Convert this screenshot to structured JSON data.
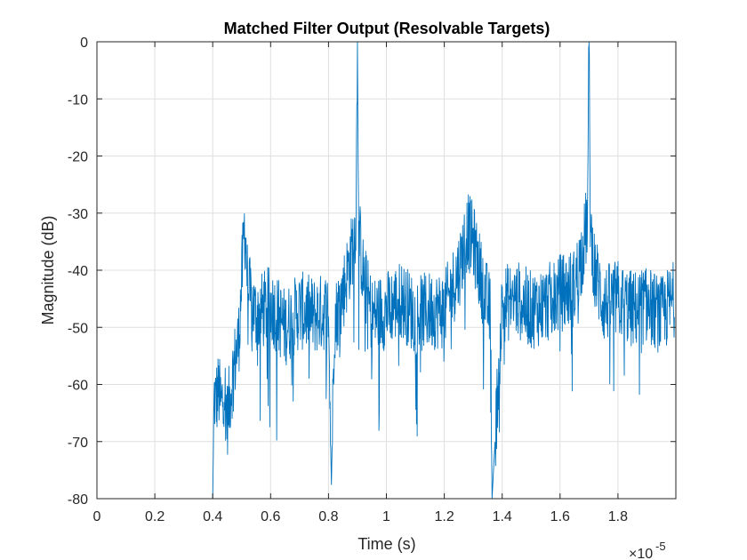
{
  "chart_data": {
    "type": "line",
    "title": "Matched Filter Output (Resolvable Targets)",
    "xlabel": "Time (s)",
    "ylabel": "Magnitude (dB)",
    "x_exponent_label": "×10",
    "x_exponent_power": "-5",
    "xlim": [
      0,
      2e-05
    ],
    "ylim": [
      -80,
      0
    ],
    "xticks": [
      0,
      0.2,
      0.4,
      0.6,
      0.8,
      1,
      1.2,
      1.4,
      1.6,
      1.8
    ],
    "xtick_labels": [
      "0",
      "0.2",
      "0.4",
      "0.6",
      "0.8",
      "1",
      "1.2",
      "1.4",
      "1.6",
      "1.8"
    ],
    "yticks": [
      0,
      -10,
      -20,
      -30,
      -40,
      -50,
      -60,
      -70,
      -80
    ],
    "ytick_labels": [
      "0",
      "-10",
      "-20",
      "-30",
      "-40",
      "-50",
      "-60",
      "-70",
      "-80"
    ],
    "grid": true,
    "color": "#0072BD",
    "series": [
      {
        "x": [
          4e-06,
          4.05e-06,
          4.1e-06,
          4.2e-06,
          4.3e-06,
          4.4e-06,
          4.5e-06,
          4.6e-06,
          4.7e-06,
          4.8e-06,
          4.9e-06,
          5e-06,
          5.1e-06,
          5.15e-06,
          5.2e-06,
          5.3e-06,
          5.5e-06,
          6e-06,
          6.5e-06,
          7e-06,
          7.5e-06,
          8e-06,
          8.1e-06,
          8.2e-06,
          8.5e-06,
          8.8e-06,
          8.95e-06,
          9e-06,
          9.05e-06,
          9.2e-06,
          9.5e-06,
          1e-05,
          1.05e-05,
          1.1e-05,
          1.15e-05,
          1.2e-05,
          1.25e-05,
          1.28e-05,
          1.3e-05,
          1.33e-05,
          1.36e-05,
          1.365e-05,
          1.4e-05,
          1.45e-05,
          1.5e-05,
          1.55e-05,
          1.6e-05,
          1.65e-05,
          1.68e-05,
          1.695e-05,
          1.7e-05,
          1.705e-05,
          1.72e-05,
          1.75e-05,
          1.8e-05,
          1.85e-05,
          1.9e-05,
          1.95e-05,
          1.995e-05
        ],
        "y": [
          -80,
          -62,
          -63,
          -61,
          -64,
          -60,
          -66,
          -62,
          -58,
          -55,
          -52,
          -42,
          -32,
          -36,
          -42,
          -45,
          -48,
          -46,
          -50,
          -47,
          -48,
          -47,
          -78,
          -49,
          -44,
          -37,
          -31,
          0,
          -33,
          -41,
          -48,
          -47,
          -45,
          -48,
          -47,
          -47,
          -40,
          -33,
          -35,
          -42,
          -48,
          -80,
          -46,
          -45,
          -47,
          -46,
          -44,
          -43,
          -36,
          -31,
          0,
          -33,
          -40,
          -46,
          -45,
          -47,
          -46,
          -48,
          -45
        ]
      }
    ]
  }
}
